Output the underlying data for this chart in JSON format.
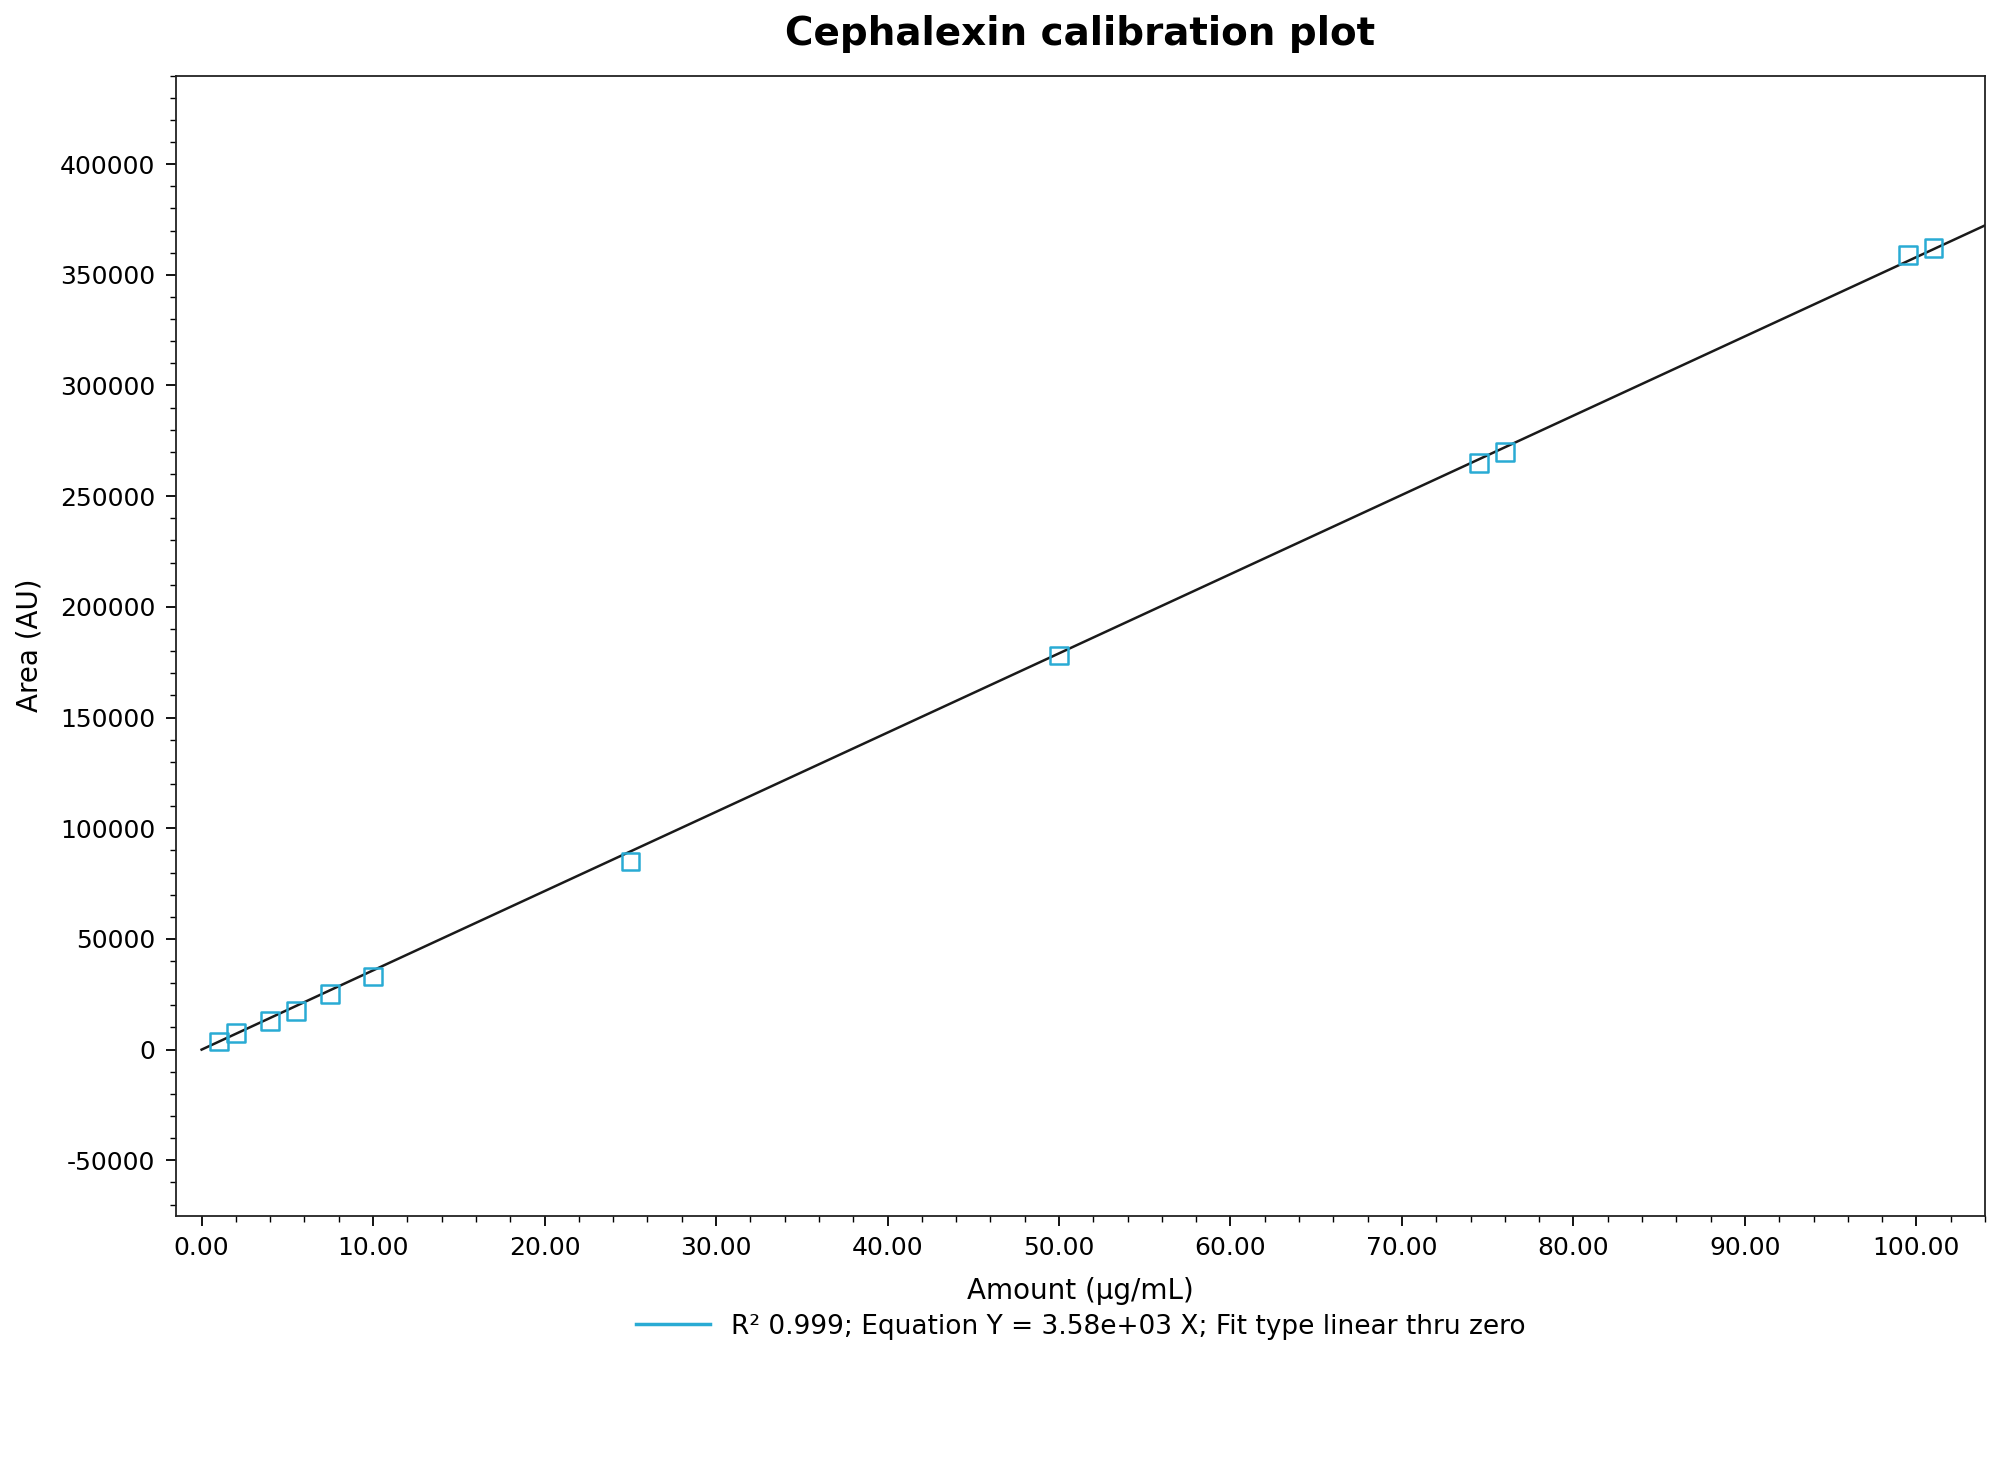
{
  "title": "Cephalexin calibration plot",
  "xlabel": "Amount (μg/mL)",
  "ylabel": "Area (AU)",
  "slope": 3580,
  "scatter_x": [
    1.0,
    2.0,
    4.0,
    5.5,
    7.5,
    10.0,
    25.0,
    50.0,
    74.5,
    76.0,
    99.5,
    101.0
  ],
  "scatter_y": [
    3580,
    7500,
    13000,
    17500,
    25000,
    33000,
    85000,
    178000,
    265000,
    270000,
    359000,
    362000
  ],
  "marker_color": "#29ABD4",
  "line_color": "#1a1a1a",
  "legend_line_color": "#29ABD4",
  "background_color": "#ffffff",
  "xlim": [
    -1.5,
    104
  ],
  "ylim": [
    -75000,
    440000
  ],
  "xticks": [
    0,
    10,
    20,
    30,
    40,
    50,
    60,
    70,
    80,
    90,
    100
  ],
  "yticks": [
    -50000,
    0,
    50000,
    100000,
    150000,
    200000,
    250000,
    300000,
    350000,
    400000
  ],
  "legend_label": "R² 0.999; Equation Y = 3.58e+03 X; Fit type linear thru zero",
  "title_fontsize": 28,
  "label_fontsize": 20,
  "tick_fontsize": 18,
  "legend_fontsize": 19
}
